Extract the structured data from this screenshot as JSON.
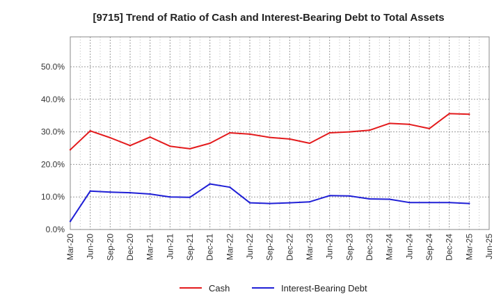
{
  "chart_data": {
    "type": "line",
    "title": "[9715]  Trend of Ratio of Cash and Interest-Bearing Debt to Total Assets",
    "xlabel": "",
    "ylabel": "",
    "x_ticks": [
      "Mar-20",
      "Jun-20",
      "Sep-20",
      "Dec-20",
      "Mar-21",
      "Jun-21",
      "Sep-21",
      "Dec-21",
      "Mar-22",
      "Jun-22",
      "Sep-22",
      "Dec-22",
      "Mar-23",
      "Jun-23",
      "Sep-23",
      "Dec-23",
      "Mar-24",
      "Jun-24",
      "Sep-24",
      "Dec-24",
      "Mar-25",
      "Jun-25"
    ],
    "x": [
      "Mar-20",
      "Jun-20",
      "Sep-20",
      "Dec-20",
      "Mar-21",
      "Jun-21",
      "Sep-21",
      "Dec-21",
      "Mar-22",
      "Jun-22",
      "Sep-22",
      "Dec-22",
      "Mar-23",
      "Jun-23",
      "Sep-23",
      "Dec-23",
      "Mar-24",
      "Jun-24",
      "Sep-24",
      "Dec-24",
      "Mar-25"
    ],
    "y_ticks": [
      "0.0%",
      "10.0%",
      "20.0%",
      "30.0%",
      "40.0%",
      "50.0%"
    ],
    "ylim": [
      0,
      0.5
    ],
    "grid": true,
    "legend_position": "bottom",
    "series": [
      {
        "name": "Cash",
        "color": "#e31a1c",
        "values": [
          0.245,
          0.303,
          0.282,
          0.258,
          0.284,
          0.256,
          0.248,
          0.265,
          0.297,
          0.293,
          0.283,
          0.278,
          0.265,
          0.297,
          0.3,
          0.305,
          0.326,
          0.323,
          0.31,
          0.356,
          0.354
        ]
      },
      {
        "name": "Interest-Bearing Debt",
        "color": "#1f1fd6",
        "values": [
          0.025,
          0.118,
          0.115,
          0.113,
          0.109,
          0.1,
          0.099,
          0.14,
          0.13,
          0.082,
          0.08,
          0.082,
          0.085,
          0.104,
          0.103,
          0.094,
          0.093,
          0.083,
          0.083,
          0.083,
          0.08
        ]
      }
    ]
  }
}
